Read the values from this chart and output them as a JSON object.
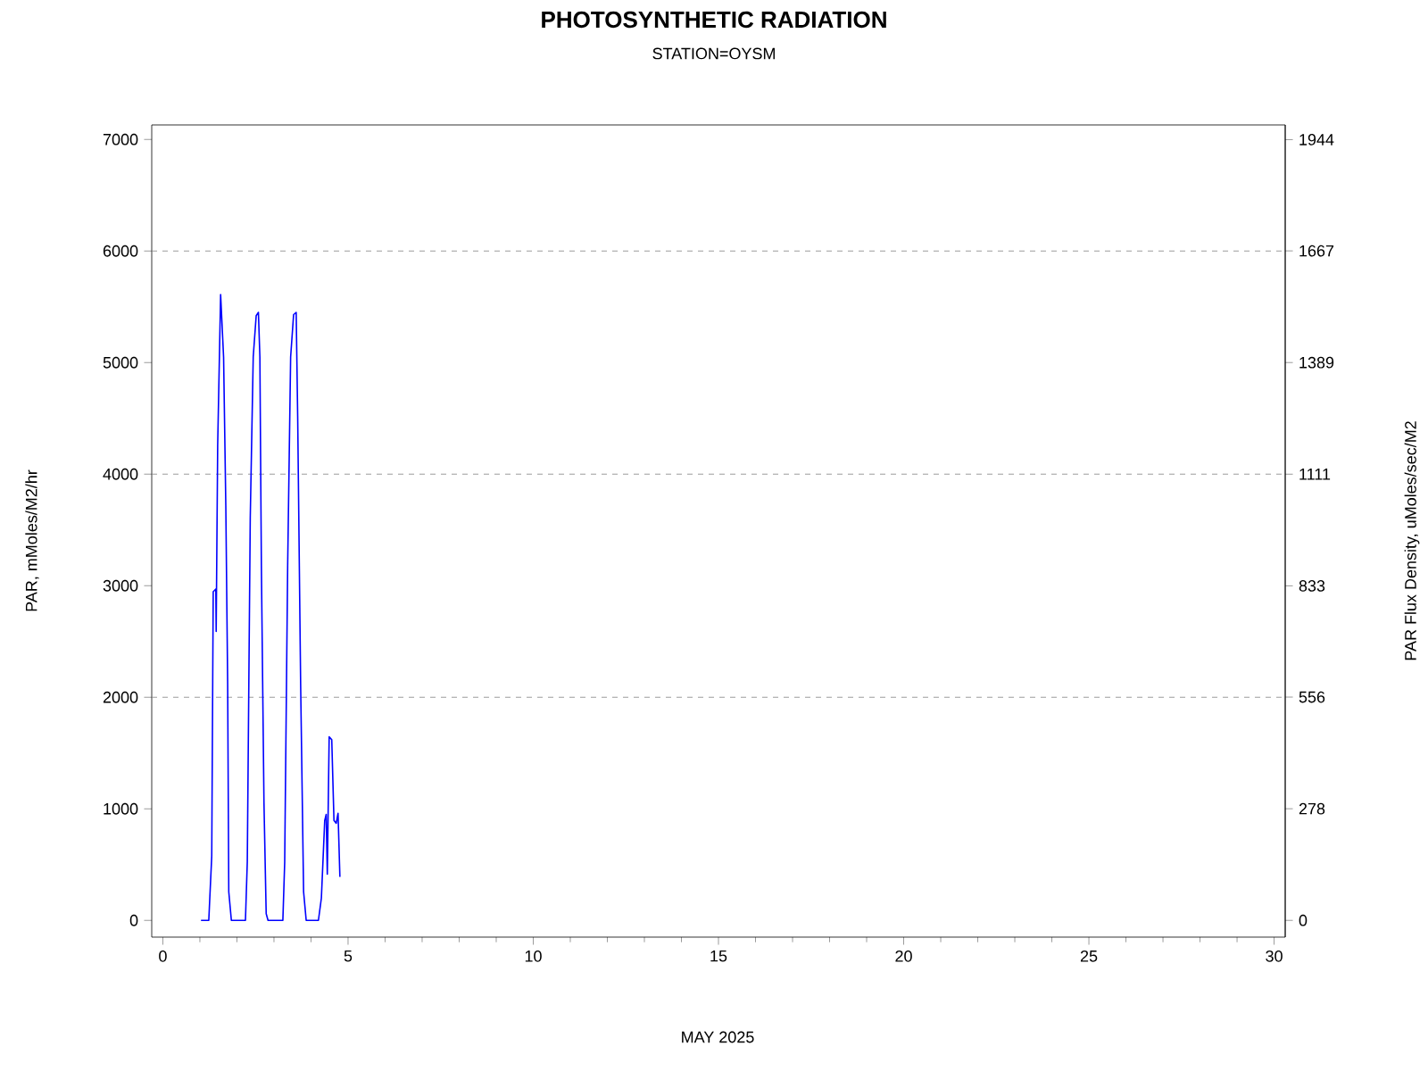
{
  "chart_data": {
    "type": "line",
    "title": "PHOTOSYNTHETIC RADIATION",
    "subtitle": "STATION=OYSM",
    "xlabel": "MAY 2025",
    "ylabel": "PAR, mMoles/M2/hr",
    "y2label": "PAR Flux Density, uMoles/sec/M2",
    "x": [
      1.03,
      1.24,
      1.32,
      1.36,
      1.43,
      1.44,
      1.48,
      1.56,
      1.64,
      1.7,
      1.75,
      1.78,
      1.85,
      2.23,
      2.28,
      2.36,
      2.44,
      2.52,
      2.58,
      2.62,
      2.66,
      2.73,
      2.79,
      2.84,
      3.24,
      3.29,
      3.37,
      3.45,
      3.53,
      3.6,
      3.64,
      3.72,
      3.8,
      3.87,
      4.2,
      4.28,
      4.37,
      4.41,
      4.44,
      4.49,
      4.56,
      4.62,
      4.68,
      4.73,
      4.78
    ],
    "series": [
      {
        "color": "#0000ff",
        "values": [
          0,
          0,
          575,
          2946,
          2970,
          2590,
          4250,
          5610,
          5050,
          3720,
          2120,
          256,
          0,
          0,
          525,
          3610,
          5050,
          5420,
          5450,
          5050,
          3185,
          1055,
          60,
          0,
          0,
          525,
          3185,
          5050,
          5430,
          5450,
          4520,
          2120,
          256,
          0,
          0,
          200,
          895,
          950,
          415,
          1645,
          1620,
          895,
          870,
          960,
          390
        ]
      }
    ],
    "xlim": [
      -0.3,
      30.3
    ],
    "ylim": [
      -150,
      7130
    ],
    "xticks": [
      0,
      5,
      10,
      15,
      20,
      25,
      30
    ],
    "yticks": [
      0,
      1000,
      2000,
      3000,
      4000,
      5000,
      6000,
      7000
    ],
    "y2lim": [
      -41.7,
      1980.6
    ],
    "y2ticks": [
      0,
      278,
      556,
      833,
      1111,
      1389,
      1667,
      1944
    ],
    "ref_lines": [
      {
        "axis": "y",
        "value": 2000,
        "color": "#808080",
        "line_style": "dashed"
      },
      {
        "axis": "y",
        "value": 4000,
        "color": "#808080",
        "line_style": "dashed"
      },
      {
        "axis": "y",
        "value": 6000,
        "color": "#808080",
        "line_style": "dashed"
      }
    ]
  }
}
